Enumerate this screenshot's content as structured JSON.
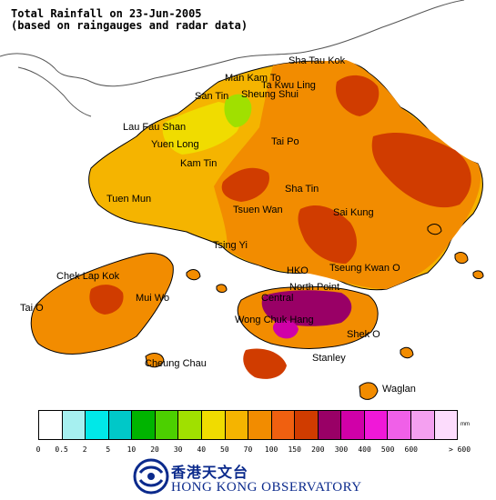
{
  "title": {
    "line1": "Total Rainfall on 23-Jun-2005",
    "line2": "(based on raingauges and radar data)"
  },
  "places": [
    {
      "id": "sha-tau-kok",
      "label": "Sha Tau Kok"
    },
    {
      "id": "man-kam-to",
      "label": "Man Kam To"
    },
    {
      "id": "ta-kwu-ling",
      "label": "Ta Kwu Ling"
    },
    {
      "id": "san-tin",
      "label": "San Tin"
    },
    {
      "id": "sheung-shui",
      "label": "Sheung Shui"
    },
    {
      "id": "lau-fau-shan",
      "label": "Lau Fau Shan"
    },
    {
      "id": "yuen-long",
      "label": "Yuen Long"
    },
    {
      "id": "tai-po",
      "label": "Tai Po"
    },
    {
      "id": "kam-tin",
      "label": "Kam Tin"
    },
    {
      "id": "tuen-mun",
      "label": "Tuen Mun"
    },
    {
      "id": "sha-tin",
      "label": "Sha Tin"
    },
    {
      "id": "tsuen-wan",
      "label": "Tsuen Wan"
    },
    {
      "id": "sai-kung",
      "label": "Sai Kung"
    },
    {
      "id": "tsing-yi",
      "label": "Tsing Yi"
    },
    {
      "id": "hko",
      "label": "HKO"
    },
    {
      "id": "tseung-kwan-o",
      "label": "Tseung Kwan O"
    },
    {
      "id": "chek-lap-kok",
      "label": "Chek Lap Kok"
    },
    {
      "id": "north-point",
      "label": "North Point"
    },
    {
      "id": "central",
      "label": "Central"
    },
    {
      "id": "mui-wo",
      "label": "Mui Wo"
    },
    {
      "id": "tai-o",
      "label": "Tai O"
    },
    {
      "id": "wong-chuk-hang",
      "label": "Wong Chuk Hang"
    },
    {
      "id": "shek-o",
      "label": "Shek O"
    },
    {
      "id": "cheung-chau",
      "label": "Cheung Chau"
    },
    {
      "id": "stanley",
      "label": "Stanley"
    },
    {
      "id": "waglan",
      "label": "Waglan"
    }
  ],
  "legend": {
    "unit": "mm",
    "colors": [
      "#ffffff",
      "#a6f0f0",
      "#00e8e8",
      "#00c8c8",
      "#00b400",
      "#4cd000",
      "#a0e000",
      "#f0dc00",
      "#f5b400",
      "#f28c00",
      "#f06010",
      "#d03c00",
      "#990066",
      "#d000a8",
      "#f018d8",
      "#f060e8",
      "#f4a0f0",
      "#fcdcfc"
    ],
    "labels": [
      "0",
      "0.5",
      "2",
      "5",
      "10",
      "20",
      "30",
      "40",
      "50",
      "70",
      "100",
      "150",
      "200",
      "300",
      "400",
      "500",
      "600",
      "> 600"
    ]
  },
  "logo": {
    "chinese": "香港天文台",
    "english": "HONG KONG OBSERVATORY"
  }
}
